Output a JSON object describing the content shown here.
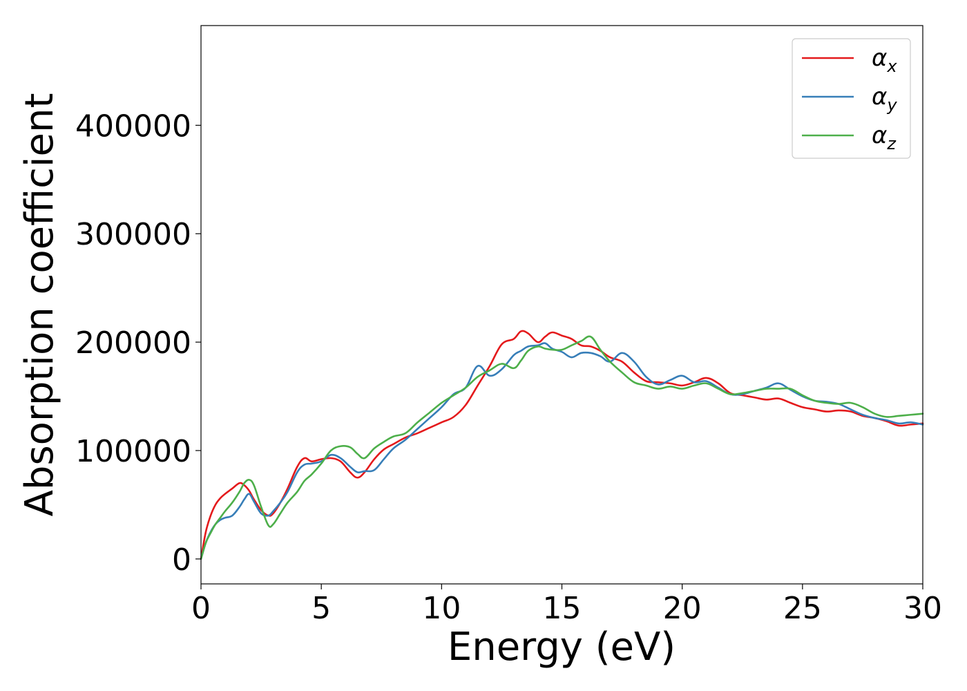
{
  "chart_data": {
    "type": "line",
    "title": "",
    "xlabel": "Energy (eV)",
    "ylabel": "Absorption coefficient",
    "xlim": [
      0,
      30
    ],
    "ylim": [
      -23000,
      492000
    ],
    "xticks": [
      0,
      5,
      10,
      15,
      20,
      25,
      30
    ],
    "yticks": [
      0,
      100000,
      200000,
      300000,
      400000
    ],
    "xtick_labels": [
      "0",
      "5",
      "10",
      "15",
      "20",
      "25",
      "30"
    ],
    "ytick_labels": [
      "0",
      "100000",
      "200000",
      "300000",
      "400000"
    ],
    "grid": false,
    "legend_position": "top-right",
    "series": [
      {
        "name": "α",
        "subscript": "x",
        "color": "#e41a1c",
        "x": [
          0,
          0.2,
          0.4,
          0.6,
          0.8,
          1.0,
          1.3,
          1.6,
          1.8,
          2.0,
          2.2,
          2.5,
          2.8,
          3.0,
          3.3,
          3.6,
          4.0,
          4.3,
          4.6,
          5.0,
          5.4,
          5.8,
          6.2,
          6.5,
          6.8,
          7.2,
          7.6,
          8.0,
          8.5,
          9.0,
          9.5,
          10.0,
          10.5,
          11.0,
          11.5,
          12.0,
          12.5,
          13.0,
          13.3,
          13.6,
          14.0,
          14.3,
          14.6,
          15.0,
          15.4,
          15.8,
          16.2,
          16.6,
          17.0,
          17.5,
          18.0,
          18.5,
          19.0,
          19.5,
          20.0,
          20.5,
          21.0,
          21.5,
          22.0,
          22.5,
          23.0,
          23.5,
          24.0,
          24.5,
          25.0,
          25.5,
          26.0,
          26.5,
          27.0,
          27.5,
          28.0,
          28.5,
          29.0,
          29.5,
          30.0
        ],
        "y": [
          0,
          25000,
          40000,
          50000,
          56000,
          60000,
          65000,
          70000,
          68000,
          63000,
          55000,
          45000,
          40000,
          42000,
          52000,
          65000,
          85000,
          93000,
          90000,
          92000,
          93000,
          90000,
          80000,
          75000,
          80000,
          92000,
          101000,
          106000,
          112000,
          116000,
          121000,
          126000,
          131000,
          142000,
          160000,
          178000,
          198000,
          203000,
          210000,
          208000,
          200000,
          205000,
          209000,
          206000,
          203000,
          197000,
          196000,
          192000,
          186000,
          182000,
          172000,
          164000,
          163000,
          162000,
          160000,
          163000,
          167000,
          162000,
          153000,
          151000,
          149000,
          147000,
          148000,
          144000,
          140000,
          138000,
          136000,
          137000,
          136000,
          132000,
          130000,
          127000,
          123000,
          124000,
          125000
        ]
      },
      {
        "name": "α",
        "subscript": "y",
        "color": "#377eb8",
        "x": [
          0,
          0.2,
          0.4,
          0.6,
          0.8,
          1.0,
          1.3,
          1.6,
          1.8,
          2.0,
          2.2,
          2.5,
          2.8,
          3.0,
          3.3,
          3.6,
          4.0,
          4.3,
          4.6,
          5.0,
          5.4,
          5.8,
          6.2,
          6.5,
          6.8,
          7.2,
          7.6,
          8.0,
          8.5,
          9.0,
          9.5,
          10.0,
          10.5,
          11.0,
          11.5,
          12.0,
          12.5,
          13.0,
          13.3,
          13.6,
          14.0,
          14.3,
          14.6,
          15.0,
          15.4,
          15.8,
          16.2,
          16.6,
          17.0,
          17.5,
          18.0,
          18.5,
          19.0,
          19.5,
          20.0,
          20.5,
          21.0,
          21.5,
          22.0,
          22.5,
          23.0,
          23.5,
          24.0,
          24.5,
          25.0,
          25.5,
          26.0,
          26.5,
          27.0,
          27.5,
          28.0,
          28.5,
          29.0,
          29.5,
          30.0
        ],
        "y": [
          0,
          15000,
          25000,
          32000,
          36000,
          38000,
          40000,
          48000,
          55000,
          60000,
          53000,
          42000,
          40000,
          44000,
          52000,
          62000,
          80000,
          87000,
          88000,
          90000,
          96000,
          93000,
          85000,
          80000,
          81000,
          82000,
          92000,
          102000,
          110000,
          120000,
          130000,
          140000,
          152000,
          158000,
          178000,
          169000,
          175000,
          188000,
          192000,
          196000,
          197000,
          199000,
          194000,
          191000,
          186000,
          190000,
          190000,
          187000,
          182000,
          190000,
          182000,
          168000,
          161000,
          165000,
          169000,
          163000,
          164000,
          158000,
          152000,
          152000,
          155000,
          158000,
          162000,
          156000,
          150000,
          146000,
          145000,
          143000,
          138000,
          133000,
          130000,
          128000,
          125000,
          126000,
          124000
        ]
      },
      {
        "name": "α",
        "subscript": "z",
        "color": "#4daf4a",
        "x": [
          0,
          0.2,
          0.4,
          0.6,
          0.8,
          1.0,
          1.3,
          1.6,
          1.8,
          2.0,
          2.2,
          2.5,
          2.8,
          3.0,
          3.3,
          3.6,
          4.0,
          4.3,
          4.6,
          5.0,
          5.4,
          5.8,
          6.2,
          6.5,
          6.8,
          7.2,
          7.6,
          8.0,
          8.5,
          9.0,
          9.5,
          10.0,
          10.5,
          11.0,
          11.5,
          12.0,
          12.5,
          13.0,
          13.3,
          13.6,
          14.0,
          14.3,
          14.6,
          15.0,
          15.4,
          15.8,
          16.2,
          16.6,
          17.0,
          17.5,
          18.0,
          18.5,
          19.0,
          19.5,
          20.0,
          20.5,
          21.0,
          21.5,
          22.0,
          22.5,
          23.0,
          23.5,
          24.0,
          24.5,
          25.0,
          25.5,
          26.0,
          26.5,
          27.0,
          27.5,
          28.0,
          28.5,
          29.0,
          29.5,
          30.0
        ],
        "y": [
          0,
          15000,
          24000,
          32000,
          38000,
          44000,
          52000,
          62000,
          70000,
          73000,
          68000,
          48000,
          31000,
          32000,
          42000,
          52000,
          62000,
          72000,
          78000,
          88000,
          100000,
          104000,
          103000,
          97000,
          93000,
          102000,
          108000,
          113000,
          116000,
          126000,
          135000,
          144000,
          151000,
          158000,
          168000,
          174000,
          180000,
          176000,
          183000,
          192000,
          196000,
          194000,
          193000,
          193000,
          197000,
          201000,
          205000,
          193000,
          182000,
          172000,
          163000,
          160000,
          157000,
          159000,
          157000,
          160000,
          162000,
          157000,
          152000,
          153000,
          155000,
          157000,
          157000,
          157000,
          151000,
          146000,
          144000,
          143000,
          144000,
          140000,
          134000,
          131000,
          132000,
          133000,
          134000
        ]
      }
    ]
  }
}
